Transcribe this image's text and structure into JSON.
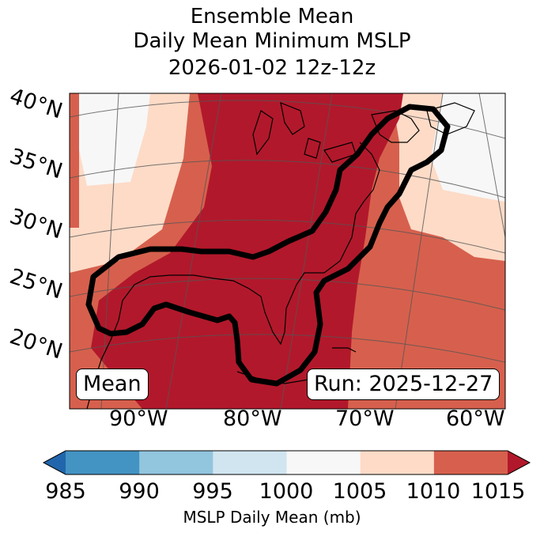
{
  "title": {
    "line1": "Ensemble Mean",
    "line2": "Daily Mean Minimum MSLP",
    "line3": "2026-01-02 12z-12z"
  },
  "map": {
    "lat_labels": [
      "40°N",
      "35°N",
      "30°N",
      "25°N",
      "20°N"
    ],
    "lon_labels": [
      "90°W",
      "80°W",
      "70°W",
      "60°W"
    ],
    "mean_label": "Mean",
    "run_label": "Run: 2025-12-27"
  },
  "colorbar": {
    "ticks": [
      "985",
      "990",
      "995",
      "1000",
      "1005",
      "1010",
      "1015"
    ],
    "label": "MSLP Daily Mean (mb)",
    "colors": [
      "#2166ac",
      "#4393c3",
      "#92c5de",
      "#d1e5f0",
      "#f7f7f7",
      "#fddbc7",
      "#d6604d",
      "#b2182b"
    ]
  }
}
